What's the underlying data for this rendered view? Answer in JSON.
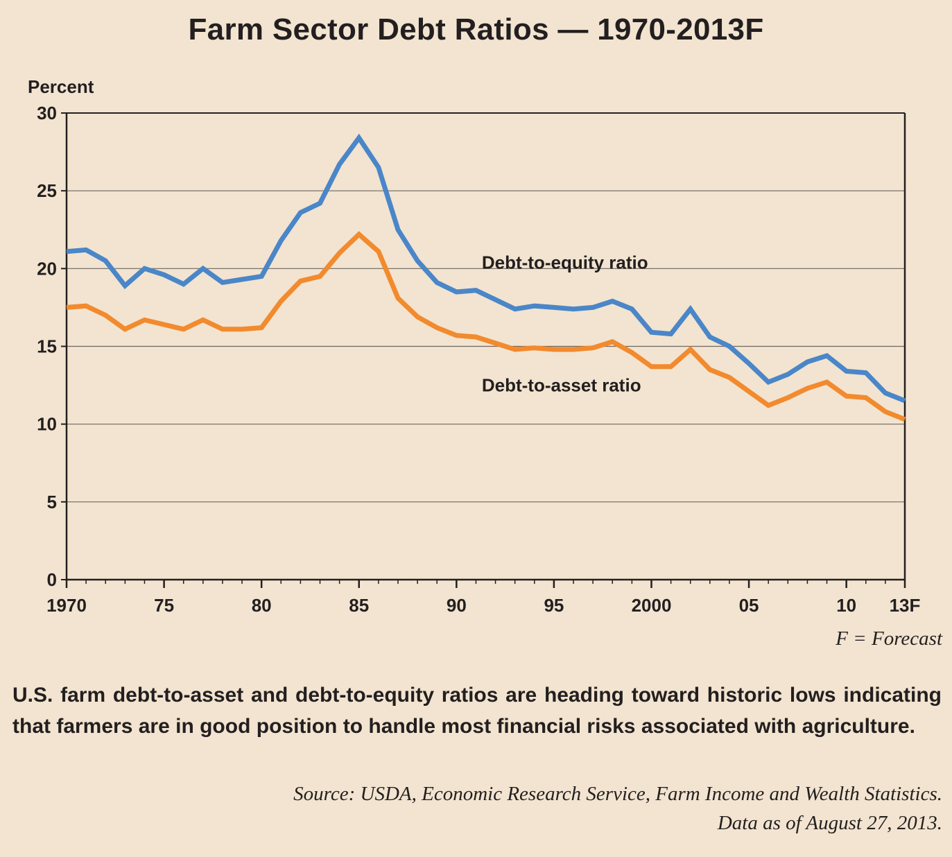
{
  "caption": {
    "text": "U.S. farm debt-to-asset and debt-to-equity ratios are heading toward historic lows indicating that farmers are in good position to handle most financial risks associated with agriculture."
  },
  "source": {
    "line1": "Source: USDA, Economic Research Service, Farm Income and Wealth Statistics.",
    "line2": "Data as of August 27, 2013."
  },
  "forecast_note": "F = Forecast",
  "colors": {
    "background": "#f2e4d0",
    "debt_to_equity": "#4a86c8",
    "debt_to_asset": "#f28a2e",
    "gridline": "#6d6661",
    "axis": "#231f20"
  },
  "chart_data": {
    "type": "line",
    "title": "Farm Sector Debt Ratios — 1970-2013F",
    "ylabel": "Percent",
    "xlabel": "",
    "xlim": [
      1970,
      2013
    ],
    "ylim": [
      0,
      30
    ],
    "grid": true,
    "yticks": [
      0,
      5,
      10,
      15,
      20,
      25,
      30
    ],
    "xticks": [
      {
        "value": 1970,
        "label": "1970"
      },
      {
        "value": 1975,
        "label": "75"
      },
      {
        "value": 1980,
        "label": "80"
      },
      {
        "value": 1985,
        "label": "85"
      },
      {
        "value": 1990,
        "label": "90"
      },
      {
        "value": 1995,
        "label": "95"
      },
      {
        "value": 2000,
        "label": "2000"
      },
      {
        "value": 2005,
        "label": "05"
      },
      {
        "value": 2010,
        "label": "10"
      },
      {
        "value": 2013,
        "label": "13F"
      }
    ],
    "x": [
      1970,
      1971,
      1972,
      1973,
      1974,
      1975,
      1976,
      1977,
      1978,
      1979,
      1980,
      1981,
      1982,
      1983,
      1984,
      1985,
      1986,
      1987,
      1988,
      1989,
      1990,
      1991,
      1992,
      1993,
      1994,
      1995,
      1996,
      1997,
      1998,
      1999,
      2000,
      2001,
      2002,
      2003,
      2004,
      2005,
      2006,
      2007,
      2008,
      2009,
      2010,
      2011,
      2012,
      2013
    ],
    "series": [
      {
        "name": "Debt-to-equity ratio",
        "color": "#4a86c8",
        "values": [
          21.1,
          21.2,
          20.5,
          18.9,
          20.0,
          19.6,
          19.0,
          20.0,
          19.1,
          19.3,
          19.5,
          21.8,
          23.6,
          24.2,
          26.7,
          28.4,
          26.5,
          22.5,
          20.5,
          19.1,
          18.5,
          18.6,
          18.0,
          17.4,
          17.6,
          17.5,
          17.4,
          17.5,
          17.9,
          17.4,
          15.9,
          15.8,
          17.4,
          15.6,
          15.0,
          13.9,
          12.7,
          13.2,
          14.0,
          14.4,
          13.4,
          13.3,
          12.0,
          11.5
        ]
      },
      {
        "name": "Debt-to-asset ratio",
        "color": "#f28a2e",
        "values": [
          17.5,
          17.6,
          17.0,
          16.1,
          16.7,
          16.4,
          16.1,
          16.7,
          16.1,
          16.1,
          16.2,
          17.9,
          19.2,
          19.5,
          21.0,
          22.2,
          21.1,
          18.1,
          16.9,
          16.2,
          15.7,
          15.6,
          15.2,
          14.8,
          14.9,
          14.8,
          14.8,
          14.9,
          15.3,
          14.6,
          13.7,
          13.7,
          14.8,
          13.5,
          13.0,
          12.1,
          11.2,
          11.7,
          12.3,
          12.7,
          11.8,
          11.7,
          10.8,
          10.3
        ]
      }
    ],
    "annotations": [
      {
        "text": "Debt-to-equity ratio",
        "x": 1991.3,
        "y": 20.0
      },
      {
        "text": "Debt-to-asset ratio",
        "x": 1991.3,
        "y": 12.1
      }
    ]
  }
}
